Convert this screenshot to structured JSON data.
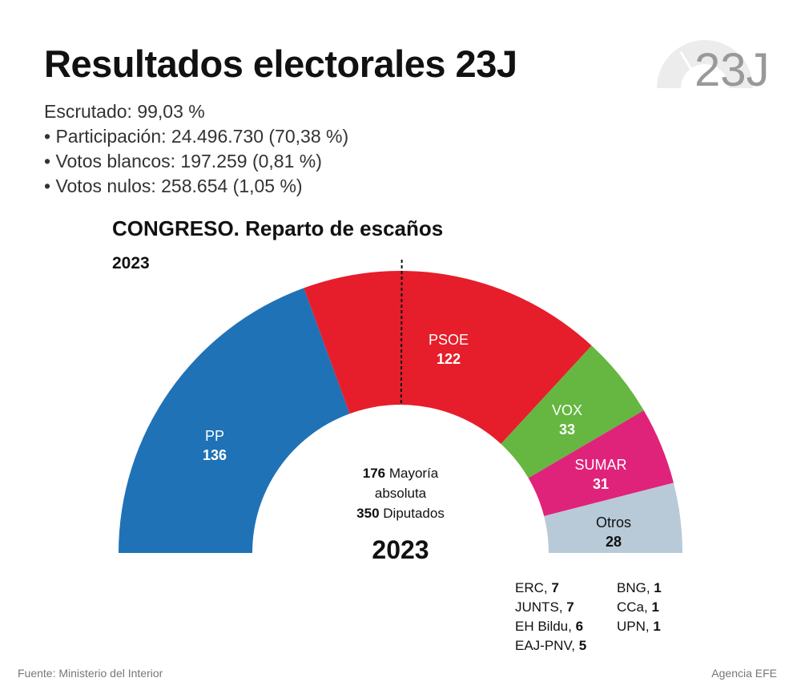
{
  "title": "Resultados electorales 23J",
  "logo_text": "23J",
  "stats": [
    "Escrutado: 99,03 %",
    "• Participación: 24.496.730 (70,38 %)",
    "• Votos blancos: 197.259 (0,81 %)",
    "• Votos nulos: 258.654 (1,05 %)"
  ],
  "chart_data": {
    "type": "pie",
    "variant": "half-donut parliament",
    "title": "CONGRESO. Reparto de escaños",
    "subtitle": "2023",
    "categories": [
      "PP",
      "PSOE",
      "VOX",
      "SUMAR",
      "Otros"
    ],
    "values": [
      136,
      122,
      33,
      31,
      28
    ],
    "colors": [
      "#1f72b6",
      "#e61e2b",
      "#65b741",
      "#e0237a",
      "#b8cad8"
    ],
    "total": 350,
    "majority": 176,
    "center": {
      "majority_num": "176",
      "majority_label": "Mayoría",
      "majority_label2": "absoluta",
      "total_num": "350",
      "total_label": "Diputados",
      "year": "2023"
    },
    "others_breakdown": [
      {
        "name": "ERC, ",
        "seats": "7"
      },
      {
        "name": "JUNTS, ",
        "seats": "7"
      },
      {
        "name": "EH Bildu, ",
        "seats": "6"
      },
      {
        "name": "EAJ-PNV, ",
        "seats": "5"
      },
      {
        "name": "BNG, ",
        "seats": "1"
      },
      {
        "name": "CCa, ",
        "seats": "1"
      },
      {
        "name": "UPN, ",
        "seats": "1"
      }
    ]
  },
  "footer": {
    "source": "Fuente: Ministerio del Interior",
    "agency": "Agencia EFE"
  }
}
